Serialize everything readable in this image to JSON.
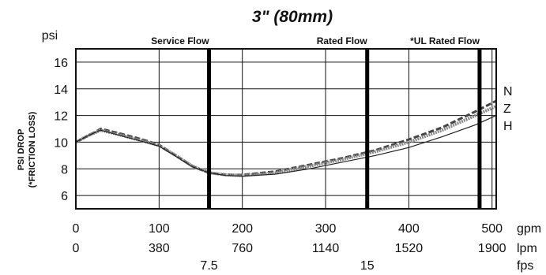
{
  "chart_data": {
    "type": "line",
    "title": "3\" (80mm)",
    "ylabel_unit": "psi",
    "ylabel": [
      "PSI DROP",
      "(*FRICTION LOSS)"
    ],
    "ylim": [
      5,
      17
    ],
    "xlim": [
      0,
      505
    ],
    "grid": true,
    "y_ticks": [
      "6",
      "8",
      "10",
      "12",
      "14",
      "16"
    ],
    "x_axes": [
      {
        "unit": "gpm",
        "ticks": [
          {
            "value": 0,
            "label": "0"
          },
          {
            "value": 100,
            "label": "100"
          },
          {
            "value": 200,
            "label": "200"
          },
          {
            "value": 300,
            "label": "300"
          },
          {
            "value": 400,
            "label": "400"
          },
          {
            "value": 500,
            "label": "500"
          }
        ]
      },
      {
        "unit": "lpm",
        "ticks": [
          {
            "value": 0,
            "label": "0"
          },
          {
            "value": 100,
            "label": "380"
          },
          {
            "value": 200,
            "label": "760"
          },
          {
            "value": 300,
            "label": "1140"
          },
          {
            "value": 400,
            "label": "1520"
          },
          {
            "value": 500,
            "label": "1900"
          }
        ]
      },
      {
        "unit": "fps",
        "ticks": [
          {
            "value": 160,
            "label": "7.5"
          },
          {
            "value": 350,
            "label": "15"
          }
        ]
      }
    ],
    "reference_lines": [
      {
        "label": "Service Flow",
        "x": 160
      },
      {
        "label": "Rated Flow",
        "x": 350
      },
      {
        "label": "*UL Rated Flow",
        "x": 485
      }
    ],
    "series": [
      {
        "name": "N",
        "style": "dashed",
        "x": [
          0,
          15,
          30,
          50,
          80,
          100,
          120,
          140,
          160,
          180,
          200,
          240,
          280,
          320,
          360,
          400,
          440,
          480,
          505
        ],
        "y": [
          10.0,
          10.5,
          11.0,
          10.7,
          10.2,
          9.8,
          9.0,
          8.2,
          7.7,
          7.55,
          7.55,
          7.8,
          8.3,
          8.8,
          9.4,
          10.2,
          11.1,
          12.3,
          13.1
        ]
      },
      {
        "name": "Z",
        "style": "hatched",
        "x": [
          0,
          15,
          30,
          50,
          80,
          100,
          120,
          140,
          160,
          180,
          200,
          240,
          280,
          320,
          360,
          400,
          440,
          480,
          505
        ],
        "y": [
          10.0,
          10.5,
          10.9,
          10.6,
          10.1,
          9.75,
          9.0,
          8.2,
          7.7,
          7.55,
          7.5,
          7.7,
          8.2,
          8.7,
          9.3,
          10.0,
          10.9,
          12.0,
          12.7
        ]
      },
      {
        "name": "H",
        "style": "solid",
        "x": [
          0,
          15,
          30,
          50,
          80,
          100,
          120,
          140,
          160,
          180,
          200,
          240,
          280,
          320,
          360,
          400,
          440,
          480,
          505
        ],
        "y": [
          10.0,
          10.5,
          10.9,
          10.55,
          10.05,
          9.7,
          8.95,
          8.15,
          7.7,
          7.5,
          7.45,
          7.6,
          8.0,
          8.5,
          9.0,
          9.6,
          10.4,
          11.3,
          12.0
        ]
      }
    ]
  }
}
